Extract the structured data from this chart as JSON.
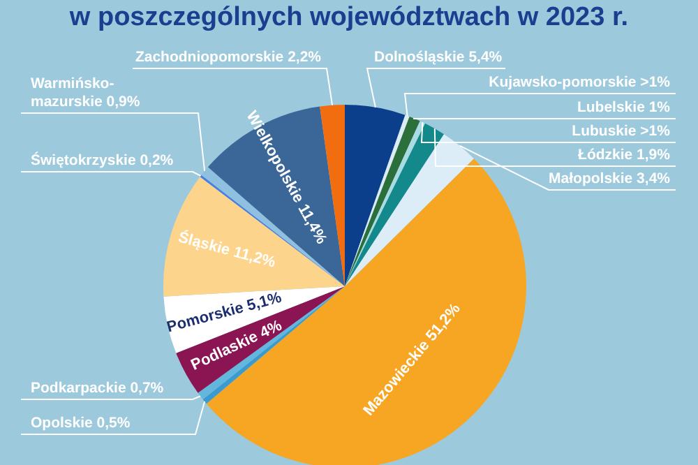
{
  "chart_data": {
    "type": "pie",
    "title": "w poszczególnych województwach w 2023 r.",
    "categories": [
      "Dolnośląskie",
      "Kujawsko-pomorskie",
      "Lubelskie",
      "Lubuskie",
      "Łódzkie",
      "Małopolskie",
      "Mazowieckie",
      "Opolskie",
      "Podkarpackie",
      "Podlaskie",
      "Pomorskie",
      "Śląskie",
      "Świętokrzyskie",
      "Warmińsko-mazurskie",
      "Wielkopolskie",
      "Zachodniopomorskie"
    ],
    "values": [
      5.4,
      0.4,
      1,
      0.5,
      1.9,
      3.4,
      51.2,
      0.5,
      0.7,
      4,
      5.1,
      11.2,
      0.2,
      0.9,
      11.4,
      2.2
    ],
    "value_labels": [
      "5,4%",
      ">1%",
      "1%",
      ">1%",
      "1,9%",
      "3,4%",
      "51,2%",
      "0,5%",
      "0,7%",
      "4%",
      "5,1%",
      "11,2%",
      "0,2%",
      "0,9%",
      "11,4%",
      "2,2%"
    ],
    "colors": [
      "#0b3f8c",
      "#dcebf6",
      "#2b6f3b",
      "#a9dbe3",
      "#14898c",
      "#dcedf8",
      "#f6a623",
      "#3b9bd1",
      "#63b6dc",
      "#8b1553",
      "#ffffff",
      "#fdd48c",
      "#4a7fe2",
      "#8fc0e0",
      "#3b6798",
      "#f26c10"
    ]
  }
}
